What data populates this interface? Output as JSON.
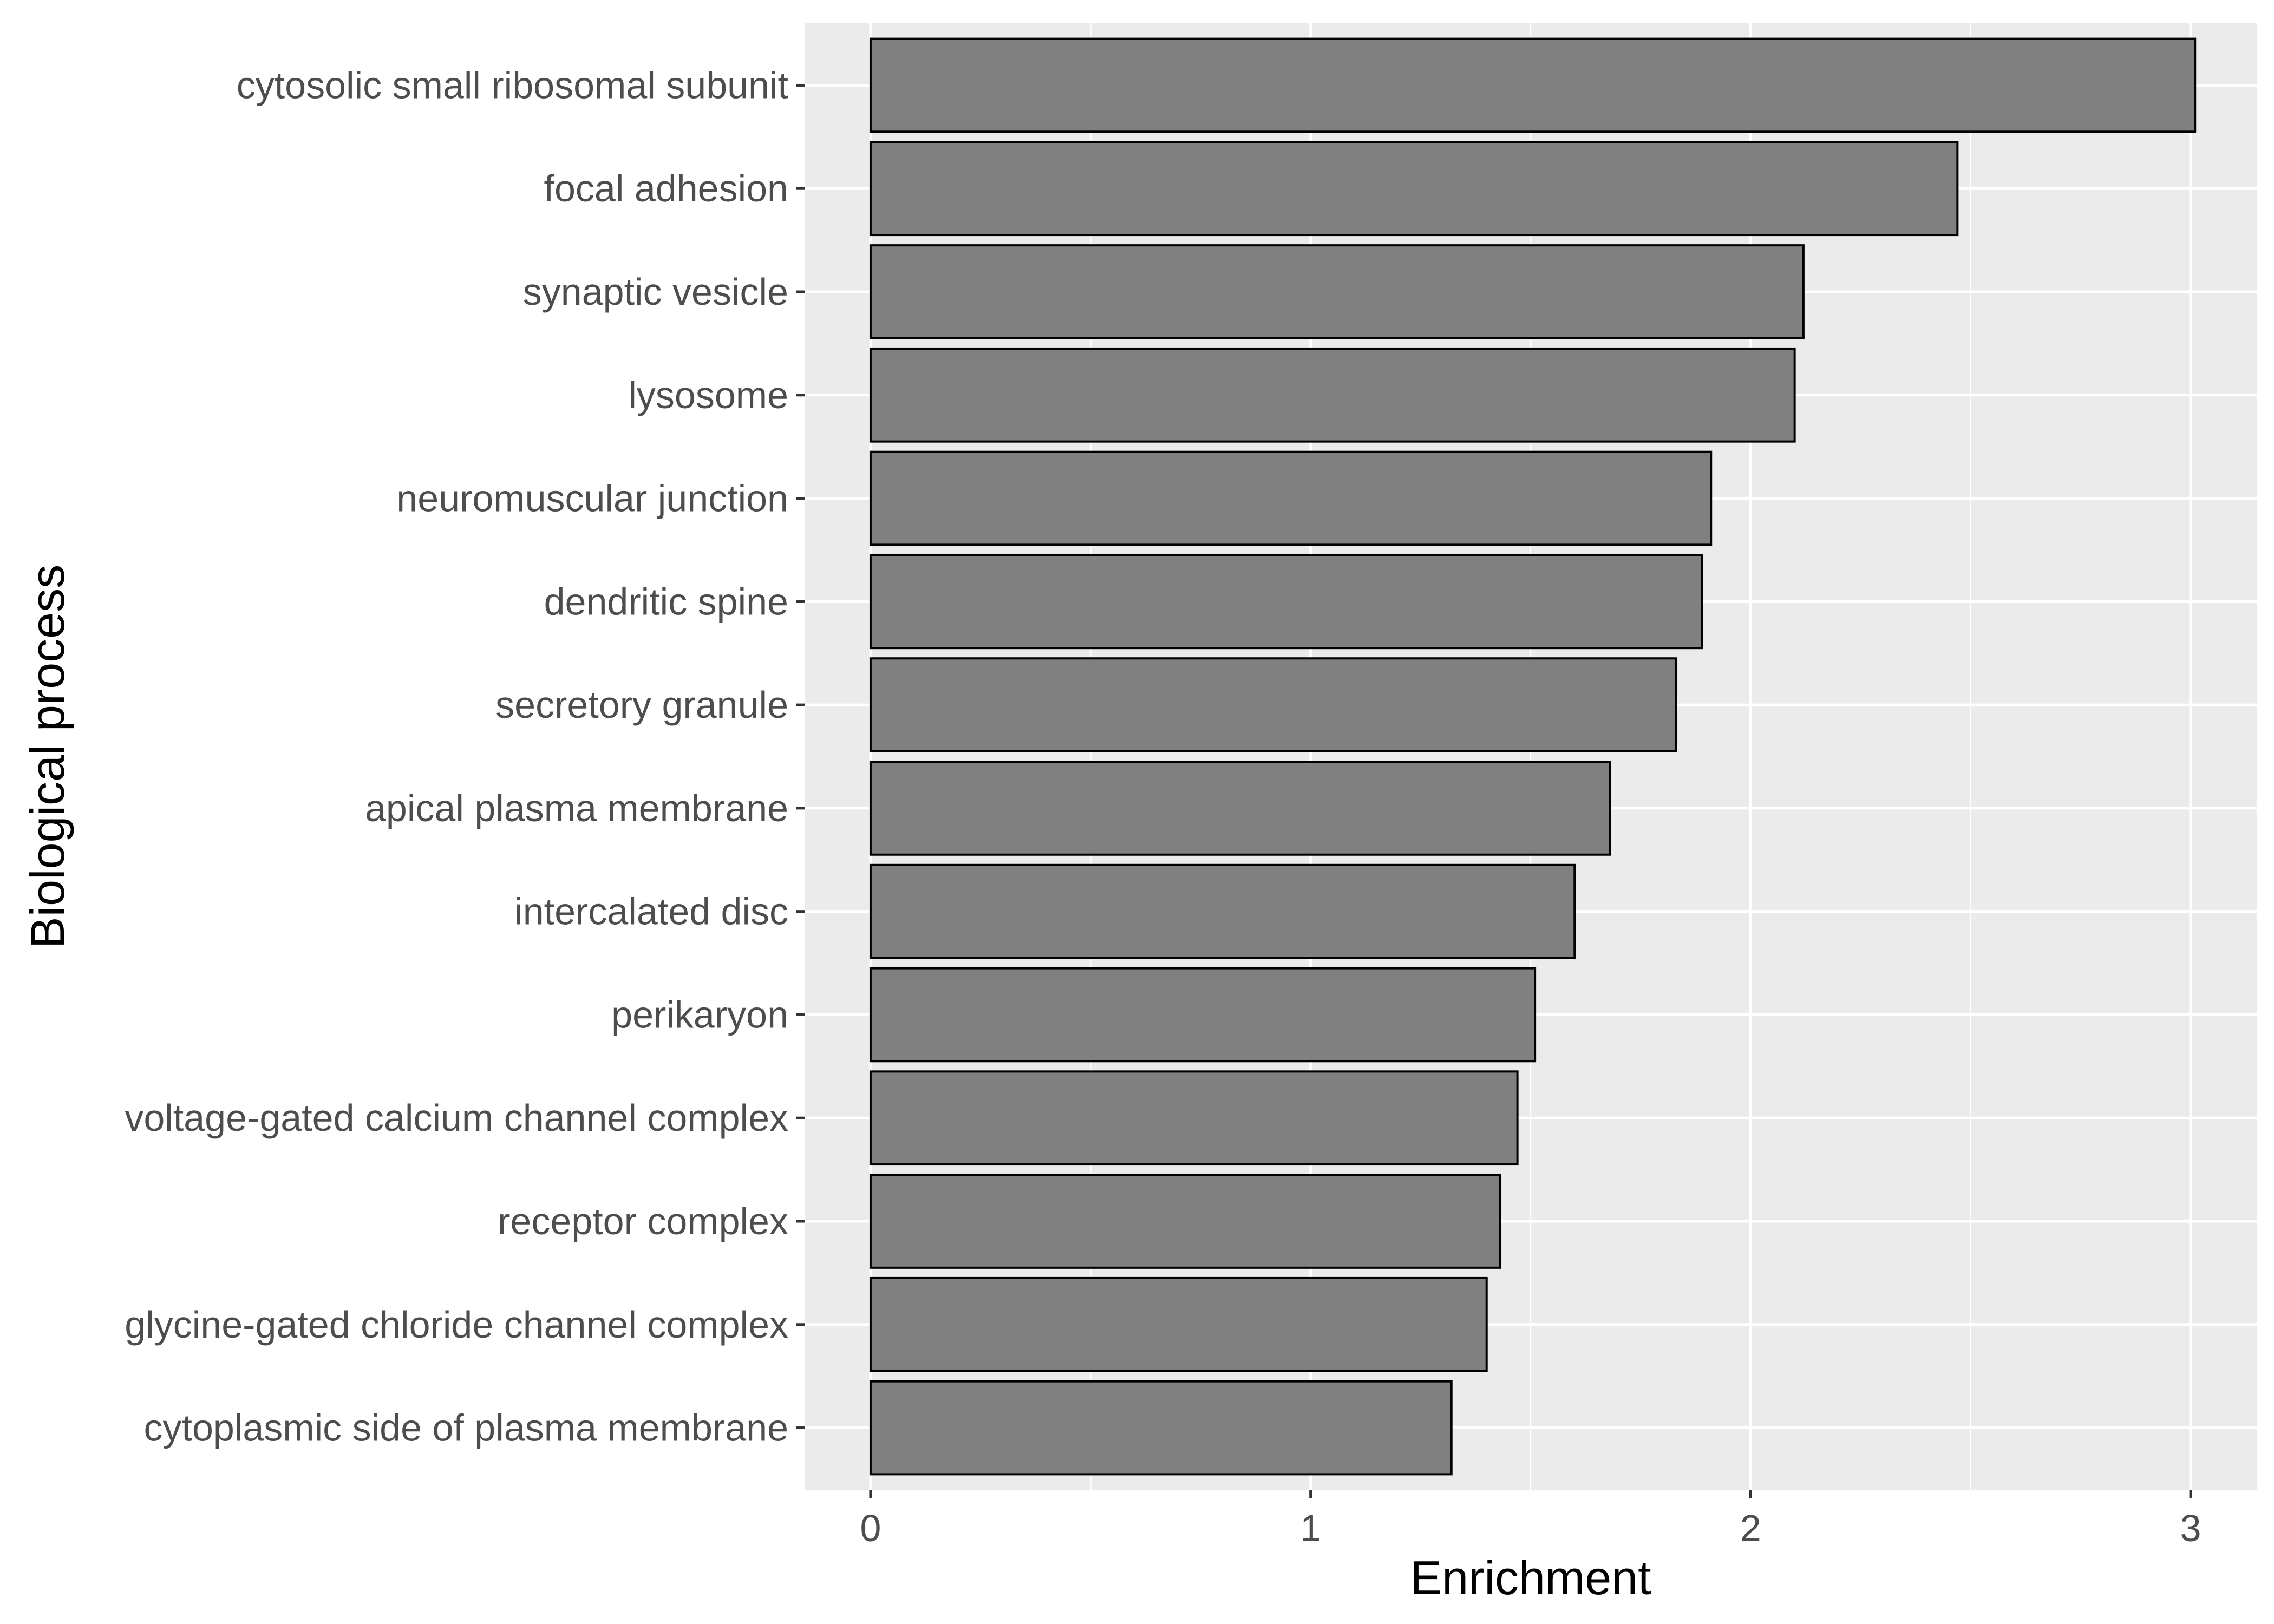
{
  "chart_data": {
    "type": "bar",
    "orientation": "horizontal",
    "categories": [
      "cytosolic small ribosomal subunit",
      "focal adhesion",
      "synaptic vesicle",
      "lysosome",
      "neuromuscular junction",
      "dendritic spine",
      "secretory granule",
      "apical plasma membrane",
      "intercalated disc",
      "perikaryon",
      "voltage-gated calcium channel complex",
      "receptor complex",
      "glycine-gated chloride channel complex",
      "cytoplasmic side of plasma membrane"
    ],
    "values": [
      3.01,
      2.47,
      2.12,
      2.1,
      1.91,
      1.89,
      1.83,
      1.68,
      1.6,
      1.51,
      1.47,
      1.43,
      1.4,
      1.32
    ],
    "xlabel": "Enrichment",
    "ylabel": "Biological process",
    "xlim": [
      -0.15,
      3.15
    ],
    "xticks": [
      "0",
      "1",
      "2",
      "3"
    ],
    "grid": true,
    "legend": "none",
    "colors": {
      "panel_background": "#ebebeb",
      "grid_major": "#ffffff",
      "bar_fill": "#808080",
      "bar_stroke": "#000000",
      "tick_text": "#4d4d4d",
      "axis_title": "#000000"
    }
  }
}
